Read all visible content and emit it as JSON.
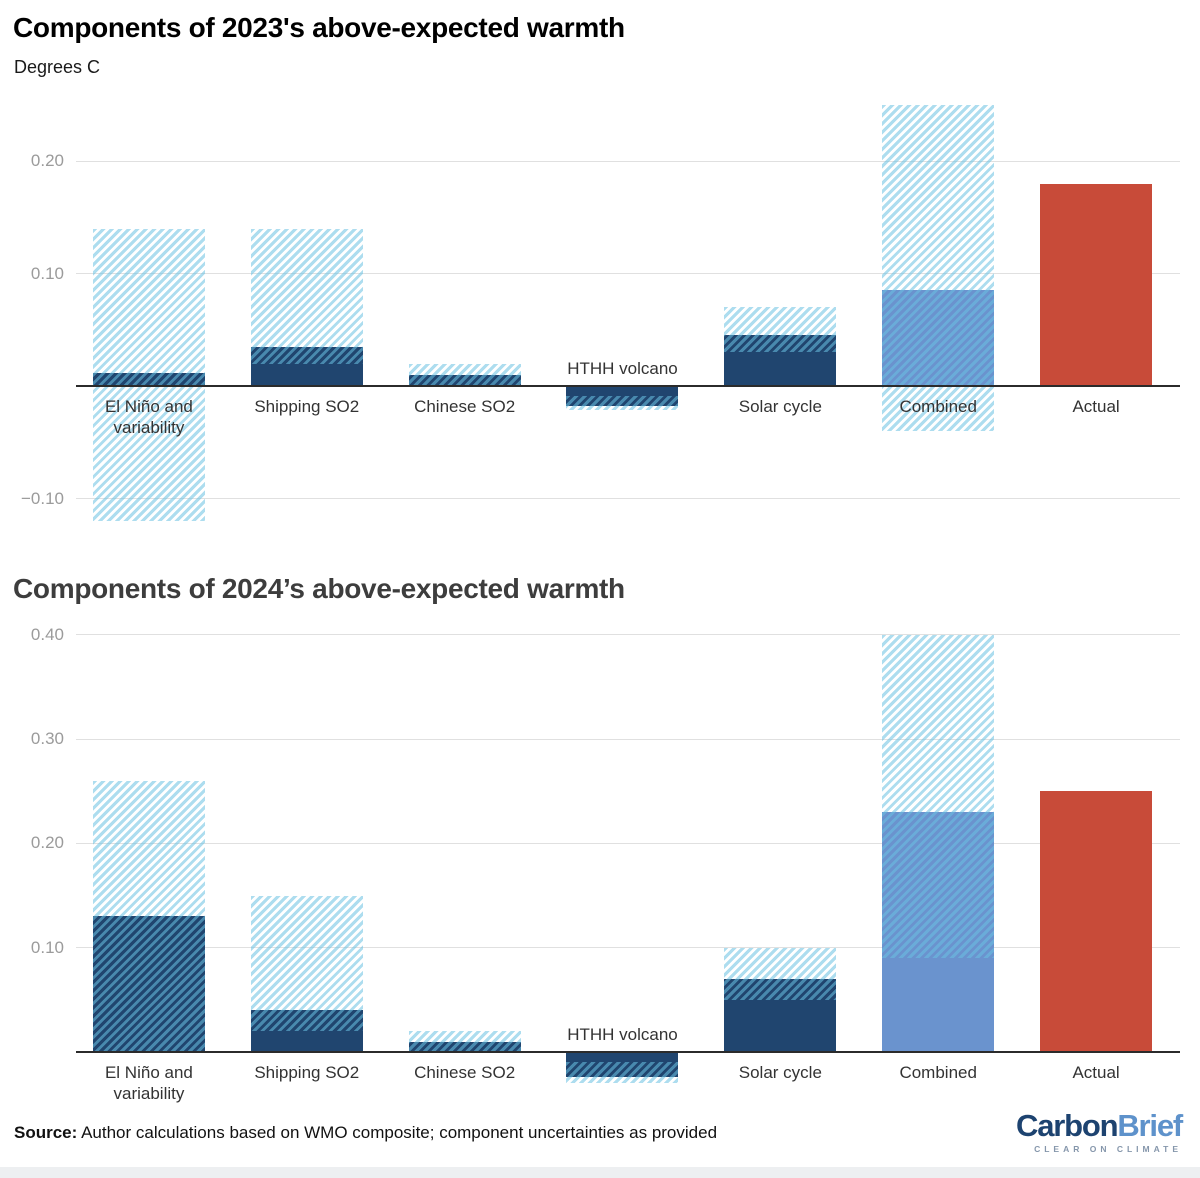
{
  "colors": {
    "component_bar": "#20456f",
    "combined_bar": "#6a93ce",
    "actual_bar": "#c84b39",
    "hatch_stripe": "rgba(106,193,226,0.55)",
    "gridline": "#e0e0e0",
    "axis_line": "#2b2b2b",
    "tick_label": "#9b9b9b",
    "category_label": "#333333",
    "title_2023_color": "#000000",
    "title_2024_color": "#3d3d3d"
  },
  "chart_data": [
    {
      "type": "bar",
      "title": "Components of 2023's above-expected warmth",
      "subtitle": "Degrees C",
      "categories": [
        "El Niño and variability",
        "Shipping SO2",
        "Chinese SO2",
        "HTHH volcano",
        "Solar cycle",
        "Combined",
        "Actual"
      ],
      "series": [
        {
          "name": "Central estimate",
          "values": [
            0.012,
            0.035,
            0.01,
            -0.018,
            0.045,
            0.085,
            0.18
          ]
        },
        {
          "name": "Uncertainty low",
          "values": [
            -0.12,
            0.02,
            0.0,
            -0.021,
            0.03,
            -0.04,
            null
          ]
        },
        {
          "name": "Uncertainty high",
          "values": [
            0.14,
            0.14,
            0.02,
            -0.009,
            0.07,
            0.25,
            null
          ]
        }
      ],
      "bar_roles": [
        "component",
        "component",
        "component",
        "component",
        "component",
        "combined",
        "actual"
      ],
      "label_above_axis": [
        false,
        false,
        false,
        true,
        false,
        false,
        false
      ],
      "yticks": [
        {
          "v": 0.2,
          "label": "0.20"
        },
        {
          "v": 0.1,
          "label": "0.10"
        },
        {
          "v": -0.1,
          "label": "−0.10"
        }
      ],
      "ylim": [
        -0.128,
        0.255
      ],
      "grid": true,
      "legend": "none",
      "hatch_meaning": "uncertainty range",
      "solid_meaning": "central estimate"
    },
    {
      "type": "bar",
      "title": "Components of 2024’s above-expected warmth",
      "subtitle": "",
      "categories": [
        "El Niño and variability",
        "Shipping SO2",
        "Chinese SO2",
        "HTHH volcano",
        "Solar cycle",
        "Combined",
        "Actual"
      ],
      "series": [
        {
          "name": "Central estimate",
          "values": [
            0.13,
            0.04,
            0.01,
            -0.024,
            0.07,
            0.23,
            0.25
          ]
        },
        {
          "name": "Uncertainty low",
          "values": [
            0.0,
            0.02,
            0.0,
            -0.03,
            0.05,
            0.09,
            null
          ]
        },
        {
          "name": "Uncertainty high",
          "values": [
            0.26,
            0.15,
            0.02,
            -0.01,
            0.1,
            0.4,
            null
          ]
        }
      ],
      "bar_roles": [
        "component",
        "component",
        "component",
        "component",
        "component",
        "combined",
        "actual"
      ],
      "label_above_axis": [
        false,
        false,
        false,
        true,
        false,
        false,
        false
      ],
      "yticks": [
        {
          "v": 0.4,
          "label": "0.40"
        },
        {
          "v": 0.3,
          "label": "0.30"
        },
        {
          "v": 0.2,
          "label": "0.20"
        },
        {
          "v": 0.1,
          "label": "0.10"
        }
      ],
      "ylim": [
        -0.04,
        0.41
      ],
      "grid": true,
      "legend": "none",
      "hatch_meaning": "uncertainty range",
      "solid_meaning": "central estimate"
    }
  ],
  "source": {
    "label": "Source:",
    "text": " Author calculations based on WMO composite; component uncertainties as provided"
  },
  "logo": {
    "part1": "Carbon",
    "part2": "Brief",
    "tagline": "CLEAR ON CLIMATE"
  }
}
